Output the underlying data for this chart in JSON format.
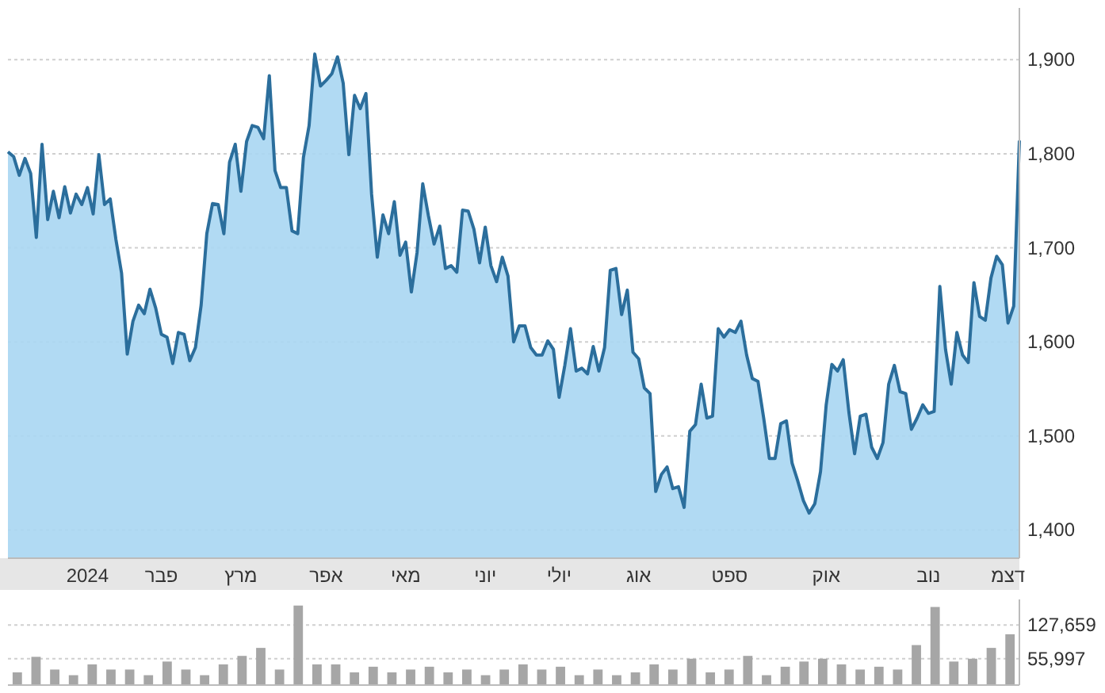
{
  "chart_data": [
    {
      "type": "area",
      "ylim": [
        1370,
        1955
      ],
      "categories": [
        null,
        null,
        null,
        null,
        null,
        null,
        null,
        null,
        null,
        null,
        null,
        null,
        null,
        null,
        "2024",
        null,
        null,
        null,
        null,
        null,
        null,
        null,
        null,
        null,
        null,
        null,
        null,
        "פבר",
        null,
        null,
        null,
        null,
        null,
        null,
        null,
        null,
        null,
        null,
        null,
        null,
        null,
        "מרץ",
        null,
        null,
        null,
        null,
        null,
        null,
        null,
        null,
        null,
        null,
        null,
        null,
        null,
        null,
        "אפר",
        null,
        null,
        null,
        null,
        null,
        null,
        null,
        null,
        null,
        null,
        null,
        null,
        null,
        "מאי",
        null,
        null,
        null,
        null,
        null,
        null,
        null,
        null,
        null,
        null,
        null,
        null,
        null,
        "יוני",
        null,
        null,
        null,
        null,
        null,
        null,
        null,
        null,
        null,
        null,
        null,
        null,
        "יולי",
        null,
        null,
        null,
        null,
        null,
        null,
        null,
        null,
        null,
        null,
        null,
        null,
        null,
        "אוג",
        null,
        null,
        null,
        null,
        null,
        null,
        null,
        null,
        null,
        null,
        null,
        null,
        null,
        null,
        null,
        "ספט",
        null,
        null,
        null,
        null,
        null,
        null,
        null,
        null,
        null,
        null,
        null,
        null,
        null,
        null,
        null,
        null,
        "אוק",
        null,
        null,
        null,
        null,
        null,
        null,
        null,
        null,
        null,
        null,
        null,
        null,
        null,
        null,
        null,
        null,
        null,
        "נוב",
        null,
        null,
        null,
        null,
        null,
        null,
        null,
        null,
        null,
        null,
        null,
        null,
        null,
        "דצמ",
        null,
        null
      ],
      "yticks": [
        {
          "value": 1400,
          "label": "1,400"
        },
        {
          "value": 1500,
          "label": "1,500"
        },
        {
          "value": 1600,
          "label": "1,600"
        },
        {
          "value": 1700,
          "label": "1,700"
        },
        {
          "value": 1800,
          "label": "1,800"
        },
        {
          "value": 1900,
          "label": "1,900"
        }
      ],
      "grid": "y",
      "series": [
        {
          "color": "#2b6e9c",
          "values": [
            1802,
            1797,
            1777,
            1795,
            1779,
            1711,
            1810,
            1730,
            1760,
            1732,
            1765,
            1737,
            1757,
            1746,
            1764,
            1736,
            1799,
            1746,
            1752,
            1709,
            1673,
            1587,
            1622,
            1639,
            1630,
            1656,
            1636,
            1608,
            1605,
            1577,
            1610,
            1608,
            1580,
            1594,
            1639,
            1715,
            1747,
            1746,
            1715,
            1791,
            1810,
            1760,
            1813,
            1830,
            1828,
            1816,
            1883,
            1782,
            1764,
            1764,
            1718,
            1715,
            1796,
            1830,
            1906,
            1872,
            1878,
            1885,
            1903,
            1875,
            1799,
            1862,
            1848,
            1864,
            1757,
            1690,
            1735,
            1715,
            1749,
            1692,
            1706,
            1653,
            1695,
            1768,
            1734,
            1704,
            1723,
            1678,
            1681,
            1674,
            1740,
            1739,
            1720,
            1684,
            1722,
            1681,
            1664,
            1690,
            1670,
            1600,
            1617,
            1617,
            1594,
            1586,
            1586,
            1601,
            1592,
            1541,
            1575,
            1614,
            1569,
            1572,
            1566,
            1595,
            1569,
            1594,
            1676,
            1678,
            1629,
            1655,
            1589,
            1582,
            1551,
            1545,
            1441,
            1459,
            1467,
            1444,
            1446,
            1424,
            1505,
            1512,
            1555,
            1519,
            1521,
            1614,
            1605,
            1613,
            1610,
            1622,
            1586,
            1561,
            1558,
            1519,
            1476,
            1476,
            1513,
            1516,
            1471,
            1452,
            1431,
            1418,
            1428,
            1462,
            1533,
            1576,
            1569,
            1581,
            1525,
            1481,
            1521,
            1523,
            1488,
            1476,
            1493,
            1555,
            1575,
            1547,
            1545,
            1507,
            1519,
            1533,
            1524,
            1526,
            1659,
            1592,
            1555,
            1610,
            1586,
            1578,
            1663,
            1627,
            1623,
            1668,
            1691,
            1682,
            1620,
            1638,
            1814
          ]
        }
      ]
    },
    {
      "type": "bar",
      "ylim": [
        0,
        182000
      ],
      "tick_labels": "y",
      "categories": [
        null,
        null,
        null,
        null,
        null,
        null,
        null,
        null,
        null,
        null,
        null,
        null,
        null,
        null,
        null,
        null,
        null,
        null,
        null,
        null,
        null,
        null,
        null,
        null,
        null,
        null,
        null,
        null,
        null,
        null,
        null,
        null,
        null,
        null,
        null,
        null,
        null,
        null,
        null,
        null,
        null,
        null,
        null,
        null,
        null,
        null,
        null,
        null,
        null,
        null,
        null,
        null,
        null,
        null
      ],
      "yticks": [
        {
          "value": 55997,
          "label": "55,997"
        },
        {
          "value": 127659,
          "label": "127,659"
        }
      ],
      "grid": "y",
      "series": [
        {
          "color": "#a6a6a6",
          "values": [
            27000,
            60000,
            33000,
            21000,
            44000,
            33000,
            33000,
            21000,
            50000,
            33000,
            21000,
            44000,
            62000,
            79000,
            33000,
            169000,
            44000,
            44000,
            27000,
            39000,
            27000,
            33000,
            39000,
            27000,
            33000,
            21000,
            33000,
            44000,
            33000,
            39000,
            21000,
            33000,
            21000,
            27000,
            44000,
            33000,
            56000,
            27000,
            33000,
            62000,
            21000,
            39000,
            50000,
            56000,
            44000,
            33000,
            39000,
            33000,
            85000,
            166000,
            50000,
            56000,
            79000,
            108000
          ]
        }
      ]
    }
  ]
}
